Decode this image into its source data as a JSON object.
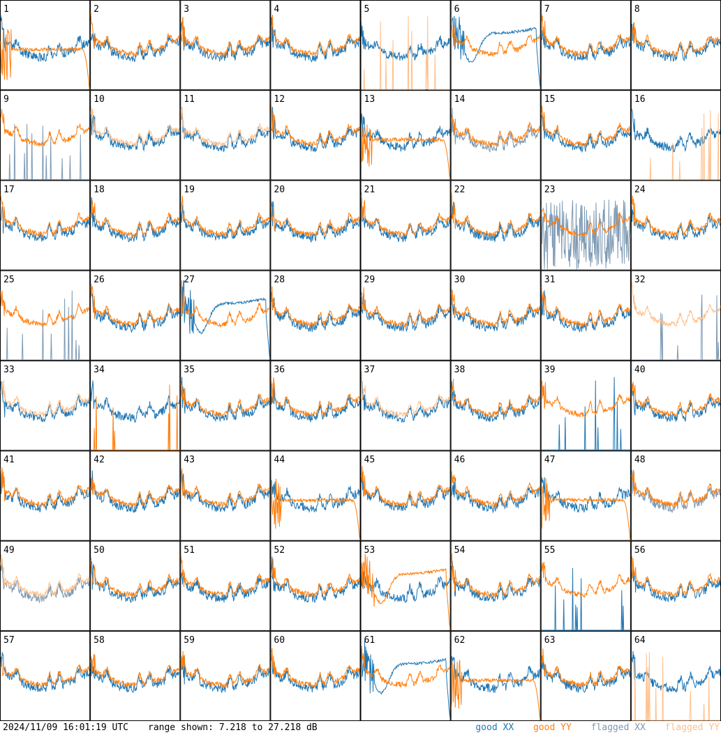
{
  "colors": {
    "good_xx": "#1f77b4",
    "good_yy": "#ff7f0e",
    "flagged_xx": "#7d99b3",
    "flagged_yy": "#ffbf8a",
    "border": "#000000",
    "background": "#ffffff"
  },
  "footer": {
    "timestamp": "2024/11/09 16:01:19 UTC",
    "range_text": "range shown: 7.218 to 27.218 dB"
  },
  "legend": [
    {
      "label": "good XX",
      "key": "good_xx"
    },
    {
      "label": "good YY",
      "key": "good_yy"
    },
    {
      "label": "flagged XX",
      "key": "flagged_xx"
    },
    {
      "label": "flagged YY",
      "key": "flagged_yy"
    }
  ],
  "chart_data": {
    "type": "line",
    "title": "",
    "grid": {
      "rows": 8,
      "cols": 8
    },
    "y_range_db": [
      7.218,
      27.218
    ],
    "panels": [
      {
        "label": "1",
        "xx": "good",
        "yy": "good",
        "yy_style": "rolloff"
      },
      {
        "label": "2",
        "xx": "good",
        "yy": "good"
      },
      {
        "label": "3",
        "xx": "good",
        "yy": "good"
      },
      {
        "label": "4",
        "xx": "good",
        "yy": "good"
      },
      {
        "label": "5",
        "xx": "good",
        "yy": "flagged",
        "yy_style": "spikes"
      },
      {
        "label": "6",
        "xx": "good",
        "yy": "good",
        "xx_style": "dip"
      },
      {
        "label": "7",
        "xx": "good",
        "yy": "good"
      },
      {
        "label": "8",
        "xx": "good",
        "yy": "good"
      },
      {
        "label": "9",
        "xx": "flagged",
        "yy": "good",
        "xx_style": "spikes"
      },
      {
        "label": "10",
        "xx": "good",
        "yy": "flagged"
      },
      {
        "label": "11",
        "xx": "good",
        "yy": "flagged"
      },
      {
        "label": "12",
        "xx": "good",
        "yy": "good"
      },
      {
        "label": "13",
        "xx": "good",
        "yy": "good",
        "yy_style": "rolloff"
      },
      {
        "label": "14",
        "xx": "flagged",
        "yy": "good"
      },
      {
        "label": "15",
        "xx": "good",
        "yy": "good"
      },
      {
        "label": "16",
        "xx": "good",
        "yy": "flagged",
        "yy_style": "spikes"
      },
      {
        "label": "17",
        "xx": "good",
        "yy": "good"
      },
      {
        "label": "18",
        "xx": "good",
        "yy": "good"
      },
      {
        "label": "19",
        "xx": "good",
        "yy": "good"
      },
      {
        "label": "20",
        "xx": "good",
        "yy": "good"
      },
      {
        "label": "21",
        "xx": "good",
        "yy": "good"
      },
      {
        "label": "22",
        "xx": "good",
        "yy": "good"
      },
      {
        "label": "23",
        "xx": "flagged",
        "yy": "good",
        "xx_style": "noise"
      },
      {
        "label": "24",
        "xx": "good",
        "yy": "good"
      },
      {
        "label": "25",
        "xx": "flagged",
        "yy": "good",
        "xx_style": "spikes"
      },
      {
        "label": "26",
        "xx": "good",
        "yy": "good"
      },
      {
        "label": "27",
        "xx": "good",
        "yy": "good",
        "xx_style": "dip"
      },
      {
        "label": "28",
        "xx": "good",
        "yy": "good"
      },
      {
        "label": "29",
        "xx": "good",
        "yy": "good"
      },
      {
        "label": "30",
        "xx": "good",
        "yy": "good"
      },
      {
        "label": "31",
        "xx": "good",
        "yy": "good"
      },
      {
        "label": "32",
        "xx": "flagged",
        "yy": "flagged",
        "xx_style": "spikes"
      },
      {
        "label": "33",
        "xx": "good",
        "yy": "flagged"
      },
      {
        "label": "34",
        "xx": "good",
        "yy": "good",
        "yy_style": "spikes"
      },
      {
        "label": "35",
        "xx": "good",
        "yy": "good"
      },
      {
        "label": "36",
        "xx": "good",
        "yy": "good"
      },
      {
        "label": "37",
        "xx": "good",
        "yy": "flagged"
      },
      {
        "label": "38",
        "xx": "good",
        "yy": "good"
      },
      {
        "label": "39",
        "xx": "good",
        "yy": "good",
        "xx_style": "spikes"
      },
      {
        "label": "40",
        "xx": "good",
        "yy": "good"
      },
      {
        "label": "41",
        "xx": "good",
        "yy": "good"
      },
      {
        "label": "42",
        "xx": "good",
        "yy": "good"
      },
      {
        "label": "43",
        "xx": "good",
        "yy": "good"
      },
      {
        "label": "44",
        "xx": "good",
        "yy": "good",
        "yy_style": "rolloff"
      },
      {
        "label": "45",
        "xx": "good",
        "yy": "good"
      },
      {
        "label": "46",
        "xx": "good",
        "yy": "good"
      },
      {
        "label": "47",
        "xx": "good",
        "yy": "good",
        "yy_style": "rolloff"
      },
      {
        "label": "48",
        "xx": "flagged",
        "yy": "good"
      },
      {
        "label": "49",
        "xx": "flagged",
        "yy": "flagged"
      },
      {
        "label": "50",
        "xx": "good",
        "yy": "good"
      },
      {
        "label": "51",
        "xx": "good",
        "yy": "good"
      },
      {
        "label": "52",
        "xx": "good",
        "yy": "good"
      },
      {
        "label": "53",
        "xx": "good",
        "yy": "good",
        "yy_style": "dip"
      },
      {
        "label": "54",
        "xx": "good",
        "yy": "good"
      },
      {
        "label": "55",
        "xx": "good",
        "yy": "good",
        "xx_style": "spikes"
      },
      {
        "label": "56",
        "xx": "good",
        "yy": "good"
      },
      {
        "label": "57",
        "xx": "good",
        "yy": "good"
      },
      {
        "label": "58",
        "xx": "good",
        "yy": "good"
      },
      {
        "label": "59",
        "xx": "good",
        "yy": "good"
      },
      {
        "label": "60",
        "xx": "good",
        "yy": "good"
      },
      {
        "label": "61",
        "xx": "good",
        "yy": "good",
        "xx_style": "dip"
      },
      {
        "label": "62",
        "xx": "good",
        "yy": "good",
        "yy_style": "rolloff"
      },
      {
        "label": "63",
        "xx": "good",
        "yy": "good"
      },
      {
        "label": "64",
        "xx": "good",
        "yy": "flagged",
        "yy_style": "spikes"
      }
    ]
  }
}
